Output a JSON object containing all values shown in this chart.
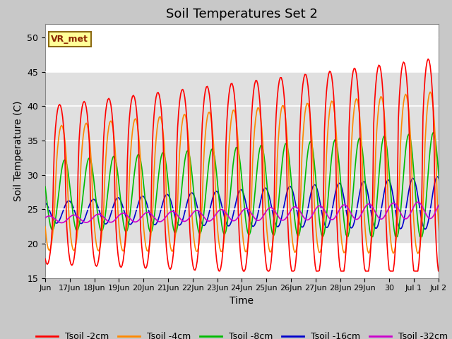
{
  "title": "Soil Temperatures Set 2",
  "xlabel": "Time",
  "ylabel": "Soil Temperature (C)",
  "ylim": [
    15,
    52
  ],
  "yticks": [
    15,
    20,
    25,
    30,
    35,
    40,
    45,
    50
  ],
  "fig_bg": "#c8c8c8",
  "plot_bg": "#ffffff",
  "band_color": "#e0e0e0",
  "band_lo": 20,
  "band_hi": 45,
  "grid_color": "#cccccc",
  "series_colors": {
    "Tsoil -2cm": "#ff0000",
    "Tsoil -4cm": "#ff8800",
    "Tsoil -8cm": "#00bb00",
    "Tsoil -16cm": "#0000cc",
    "Tsoil -32cm": "#cc00cc"
  },
  "legend_label": "VR_met",
  "xtick_labels": [
    "Jun",
    "17Jun",
    "18Jun",
    "19Jun",
    "20Jun",
    "21Jun",
    "22Jun",
    "23Jun",
    "24Jun",
    "25Jun",
    "26Jun",
    "27Jun",
    "28Jun",
    "29Jun",
    "30",
    "Jul 1",
    "Jul 2"
  ],
  "xtick_positions": [
    0,
    1,
    2,
    3,
    4,
    5,
    6,
    7,
    8,
    9,
    10,
    11,
    12,
    13,
    14,
    15,
    16
  ]
}
